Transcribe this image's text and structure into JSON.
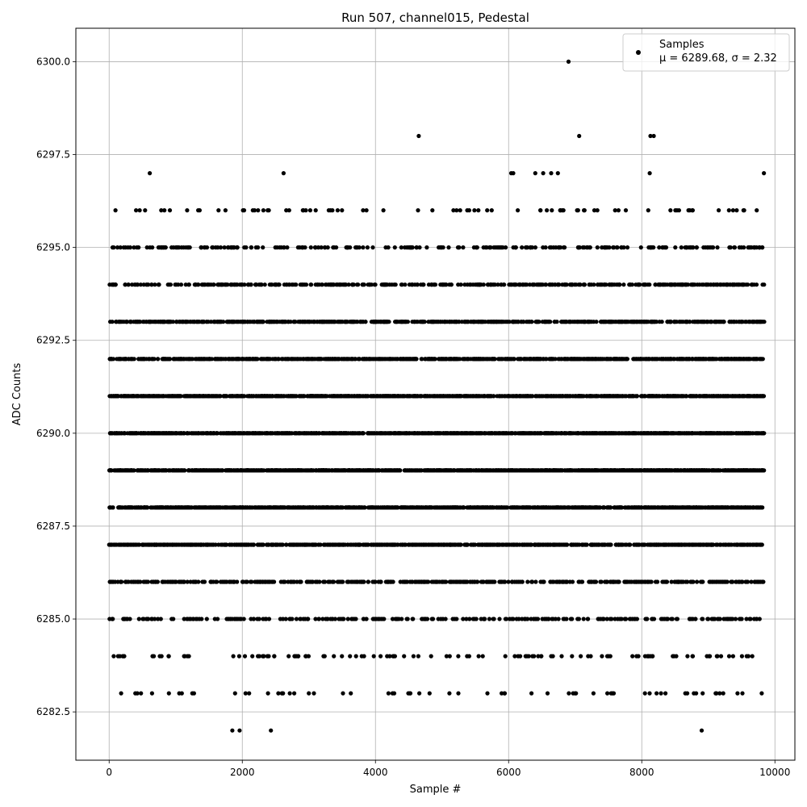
{
  "chart_data": {
    "type": "scatter",
    "title": "Run 507, channel015, Pedestal",
    "xlabel": "Sample #",
    "ylabel": "ADC Counts",
    "xlim": [
      -500,
      10300
    ],
    "ylim": [
      6281.2,
      6300.9
    ],
    "x_ticks": [
      0,
      2000,
      4000,
      6000,
      8000,
      10000
    ],
    "x_tick_labels": [
      "0",
      "2000",
      "4000",
      "6000",
      "8000",
      "10000"
    ],
    "y_ticks": [
      6282.5,
      6285.0,
      6287.5,
      6290.0,
      6292.5,
      6295.0,
      6297.5,
      6300.0
    ],
    "y_tick_labels": [
      "6282.5",
      "6285.0",
      "6287.5",
      "6290.0",
      "6292.5",
      "6295.0",
      "6297.5",
      "6300.0"
    ],
    "grid": true,
    "legend_position": "top-right",
    "series": [
      {
        "name": "Samples",
        "color": "#000000",
        "marker": "circle",
        "legend_stats": "μ = 6289.68, σ = 2.32",
        "sample_range": [
          0,
          9840
        ],
        "level_counts": [
          {
            "adc": 6282,
            "count": 4
          },
          {
            "adc": 6283,
            "count": 65
          },
          {
            "adc": 6284,
            "count": 115
          },
          {
            "adc": 6285,
            "count": 280
          },
          {
            "adc": 6286,
            "count": 520
          },
          {
            "adc": 6287,
            "count": 850
          },
          {
            "adc": 6288,
            "count": 1150
          },
          {
            "adc": 6289,
            "count": 1300
          },
          {
            "adc": 6290,
            "count": 1250
          },
          {
            "adc": 6291,
            "count": 1200
          },
          {
            "adc": 6292,
            "count": 1000
          },
          {
            "adc": 6293,
            "count": 760
          },
          {
            "adc": 6294,
            "count": 480
          },
          {
            "adc": 6295,
            "count": 260
          },
          {
            "adc": 6296,
            "count": 80
          },
          {
            "adc": 6297,
            "count": 10
          },
          {
            "adc": 6298,
            "count": 4
          },
          {
            "adc": 6300,
            "count": 1
          }
        ],
        "points": [
          {
            "x": 1850,
            "y": 6282
          },
          {
            "x": 1960,
            "y": 6282
          },
          {
            "x": 2430,
            "y": 6282
          },
          {
            "x": 8900,
            "y": 6282
          },
          {
            "x": 4650,
            "y": 6298
          },
          {
            "x": 7060,
            "y": 6298
          },
          {
            "x": 8130,
            "y": 6298
          },
          {
            "x": 8180,
            "y": 6298
          },
          {
            "x": 6900,
            "y": 6300
          },
          {
            "x": 610,
            "y": 6297
          },
          {
            "x": 2620,
            "y": 6297
          },
          {
            "x": 6040,
            "y": 6297
          },
          {
            "x": 6070,
            "y": 6297
          },
          {
            "x": 6400,
            "y": 6297
          },
          {
            "x": 6520,
            "y": 6297
          },
          {
            "x": 6640,
            "y": 6297
          },
          {
            "x": 6740,
            "y": 6297
          },
          {
            "x": 8120,
            "y": 6297
          }
        ]
      }
    ]
  }
}
